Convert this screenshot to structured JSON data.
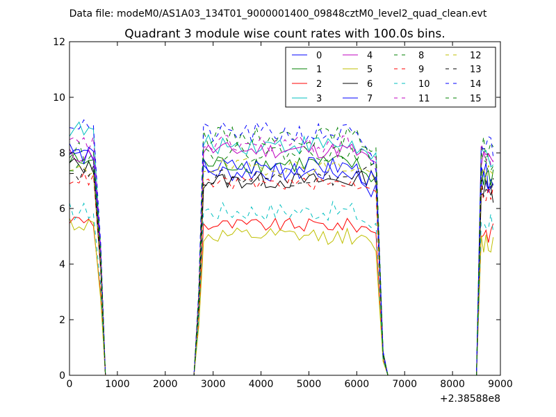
{
  "chart_data": {
    "type": "line",
    "suptitle": "Data file: modeM0/AS1A03_134T01_9000001400_09848cztM0_level2_quad_clean.evt",
    "title": "Quadrant 3 module wise count rates with 100.0s bins.",
    "xlabel": "",
    "ylabel": "",
    "xlim": [
      0,
      9000
    ],
    "ylim": [
      0,
      12
    ],
    "x_ticks": [
      0,
      1000,
      2000,
      3000,
      4000,
      5000,
      6000,
      7000,
      8000,
      9000
    ],
    "x_tick_labels": [
      "0",
      "1000",
      "2000",
      "3000",
      "4000",
      "5000",
      "6000",
      "7000",
      "8000",
      "9000"
    ],
    "y_ticks": [
      0,
      2,
      4,
      6,
      8,
      10,
      12
    ],
    "y_tick_labels": [
      "0",
      "2",
      "4",
      "6",
      "8",
      "10",
      "12"
    ],
    "x_offset_label": "+2.38588e8",
    "legend_position": "top-right",
    "legend_columns": 4,
    "series": [
      {
        "name": "0",
        "color": "#0000ff",
        "dash": "solid",
        "level": 7.3,
        "variation": 0.35,
        "start": 8.3,
        "end": 6.5
      },
      {
        "name": "1",
        "color": "#008000",
        "dash": "solid",
        "level": 7.6,
        "variation": 0.35,
        "start": 7.7,
        "end": 7.0
      },
      {
        "name": "2",
        "color": "#ff0000",
        "dash": "solid",
        "level": 5.4,
        "variation": 0.25,
        "start": 5.6,
        "end": 5.2
      },
      {
        "name": "3",
        "color": "#00bfbf",
        "dash": "solid",
        "level": 8.3,
        "variation": 0.35,
        "start": 8.9,
        "end": 7.6
      },
      {
        "name": "4",
        "color": "#bf00bf",
        "dash": "solid",
        "level": 8.1,
        "variation": 0.3,
        "start": 7.9,
        "end": 7.5
      },
      {
        "name": "5",
        "color": "#bfbf00",
        "dash": "solid",
        "level": 5.0,
        "variation": 0.3,
        "start": 5.5,
        "end": 4.5
      },
      {
        "name": "6",
        "color": "#000000",
        "dash": "solid",
        "level": 7.0,
        "variation": 0.3,
        "start": 7.6,
        "end": 7.2
      },
      {
        "name": "7",
        "color": "#0000ff",
        "dash": "solid",
        "level": 7.5,
        "variation": 0.35,
        "start": 8.0,
        "end": 6.8
      },
      {
        "name": "8",
        "color": "#008000",
        "dash": "dashed",
        "level": 8.6,
        "variation": 0.35,
        "start": 8.0,
        "end": 8.2
      },
      {
        "name": "9",
        "color": "#ff0000",
        "dash": "dashed",
        "level": 6.9,
        "variation": 0.25,
        "start": 7.1,
        "end": 6.8
      },
      {
        "name": "10",
        "color": "#00bfbf",
        "dash": "dashed",
        "level": 5.9,
        "variation": 0.35,
        "start": 5.9,
        "end": 5.2
      },
      {
        "name": "11",
        "color": "#bf00bf",
        "dash": "dashed",
        "level": 8.3,
        "variation": 0.35,
        "start": 8.3,
        "end": 7.8
      },
      {
        "name": "12",
        "color": "#bfbf00",
        "dash": "dashed",
        "level": 7.5,
        "variation": 0.3,
        "start": 7.3,
        "end": 7.1
      },
      {
        "name": "13",
        "color": "#000000",
        "dash": "dashed",
        "level": 7.1,
        "variation": 0.3,
        "start": 7.3,
        "end": 7.5
      },
      {
        "name": "14",
        "color": "#0000ff",
        "dash": "dashed",
        "level": 8.7,
        "variation": 0.4,
        "start": 9.1,
        "end": 7.2
      },
      {
        "name": "15",
        "color": "#008000",
        "dash": "dashed",
        "level": 8.0,
        "variation": 0.3,
        "start": 7.6,
        "end": 7.8
      }
    ],
    "segments": {
      "bin_width": 100,
      "active_1": [
        0,
        550
      ],
      "gap_1": [
        750,
        2600
      ],
      "active_2": [
        2800,
        6450
      ],
      "gap_2": [
        6650,
        8500
      ],
      "active_3": [
        8600,
        8850
      ]
    }
  }
}
